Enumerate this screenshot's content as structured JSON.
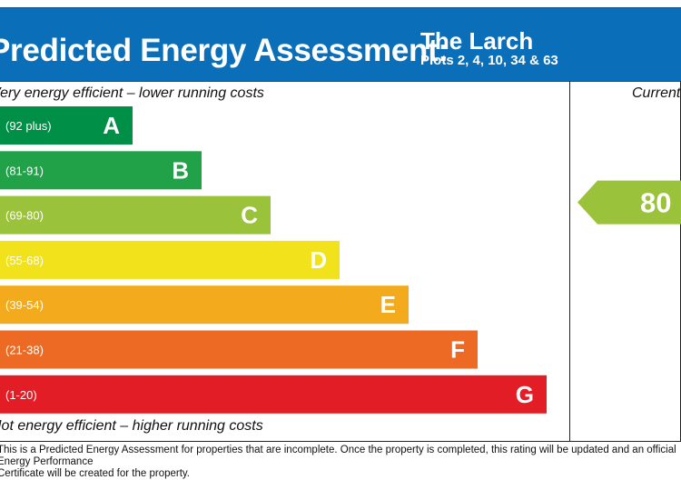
{
  "header": {
    "title": "Predicted Energy Assessment:",
    "property_name": "The Larch",
    "plots": "Plots 2, 4, 10, 34 & 63"
  },
  "labels": {
    "top": "Very energy efficient – lower running costs",
    "bottom": "Not energy efficient – higher running costs",
    "current": "Current"
  },
  "footnote": "This is a Predicted Energy Assessment for properties that are incomplete. Once the property is completed, this rating will be updated and an official Energy Performance\nCertificate will be created for the property.",
  "chart_data": {
    "type": "bar",
    "categories": [
      "A",
      "B",
      "C",
      "D",
      "E",
      "F",
      "G"
    ],
    "band_ranges": [
      "(92 plus)",
      "(81-91)",
      "(69-80)",
      "(55-68)",
      "(39-54)",
      "(21-38)",
      "(1-20)"
    ],
    "colors": [
      "#008f46",
      "#21a248",
      "#9bc23b",
      "#f2e21b",
      "#f3ab1d",
      "#ec6a24",
      "#e31d25"
    ],
    "current_rating": 80,
    "current_band": "C",
    "current_color": "#9bc23b"
  }
}
